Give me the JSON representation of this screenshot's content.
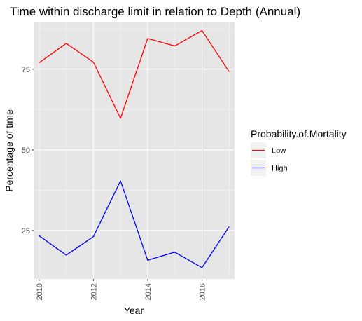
{
  "chart_data": {
    "type": "line",
    "title": "Time within discharge limit in relation to Depth (Annual)",
    "xlabel": "Year",
    "ylabel": "Percentage of time",
    "x": [
      2010,
      2011,
      2012,
      2013,
      2014,
      2015,
      2016,
      2017
    ],
    "xlim": [
      2009.8,
      2017.2
    ],
    "ylim": [
      10,
      89.5
    ],
    "xticks": [
      2010,
      2012,
      2014,
      2016
    ],
    "xtick_labels": [
      "2010",
      "2012",
      "2014",
      "2016"
    ],
    "yticks": [
      25,
      50,
      75
    ],
    "ytick_labels": [
      "25",
      "50",
      "75"
    ],
    "grid": true,
    "legend_title": "Probability.of.Mortality",
    "legend_position": "right",
    "series": [
      {
        "name": "Low",
        "color": "#ff0000",
        "values": [
          77.0,
          83.0,
          77.2,
          59.8,
          84.5,
          82.2,
          87.0,
          74.2
        ]
      },
      {
        "name": "High",
        "color": "#0000ff",
        "values": [
          23.4,
          17.4,
          23.1,
          40.4,
          15.8,
          18.3,
          13.5,
          26.2
        ]
      }
    ],
    "panel_color": "#e6e6e6",
    "grid_major_color": "#ffffff",
    "grid_minor_color": "#f2f2f2"
  }
}
